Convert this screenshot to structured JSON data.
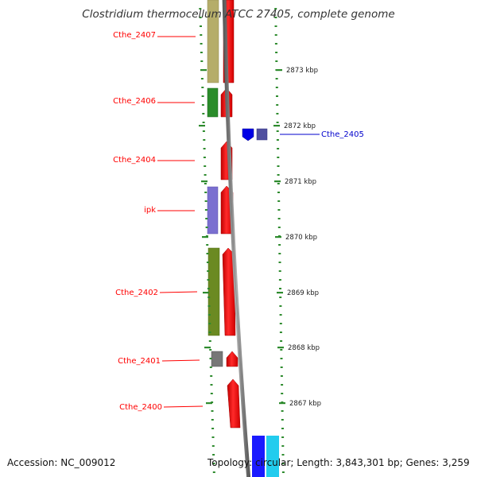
{
  "title": "Clostridium thermocellum ATCC 27405, complete genome",
  "footer": {
    "accession": "Accession: NC_009012",
    "topology": "Topology: circular; Length: 3,843,301 bp; Genes: 3,259"
  },
  "ruler": {
    "unit": "kbp",
    "ticks": [
      {
        "label": "2873 kbp"
      },
      {
        "label": "2872 kbp"
      },
      {
        "label": "2871 kbp"
      },
      {
        "label": "2870 kbp"
      },
      {
        "label": "2869 kbp"
      },
      {
        "label": "2868 kbp"
      },
      {
        "label": "2867 kbp"
      }
    ]
  },
  "genes": [
    {
      "label": "Cthe_2407",
      "strand": "left",
      "color": "#ff0000"
    },
    {
      "label": "Cthe_2406",
      "strand": "left",
      "color": "#ff0000"
    },
    {
      "label": "Cthe_2405",
      "strand": "right",
      "color": "#0000cc"
    },
    {
      "label": "Cthe_2404",
      "strand": "left",
      "color": "#ff0000"
    },
    {
      "label": "ipk",
      "strand": "left",
      "color": "#ff0000"
    },
    {
      "label": "Cthe_2402",
      "strand": "left",
      "color": "#ff0000"
    },
    {
      "label": "Cthe_2401",
      "strand": "left",
      "color": "#ff0000"
    },
    {
      "label": "Cthe_2400",
      "strand": "left",
      "color": "#ff0000"
    }
  ],
  "colors": {
    "backbone": "#808080",
    "tick": "#2e8b2e",
    "cog_khaki": "#b5ad6a",
    "cog_green": "#2a8c2a",
    "cog_purple": "#7a6fd0",
    "cog_olive": "#6b8a22",
    "cog_gray": "#777777",
    "cog_navy": "#5050a0",
    "cog_blue": "#1a1aff",
    "cog_cyan": "#22ccee",
    "gene_red": "#ff1010"
  }
}
